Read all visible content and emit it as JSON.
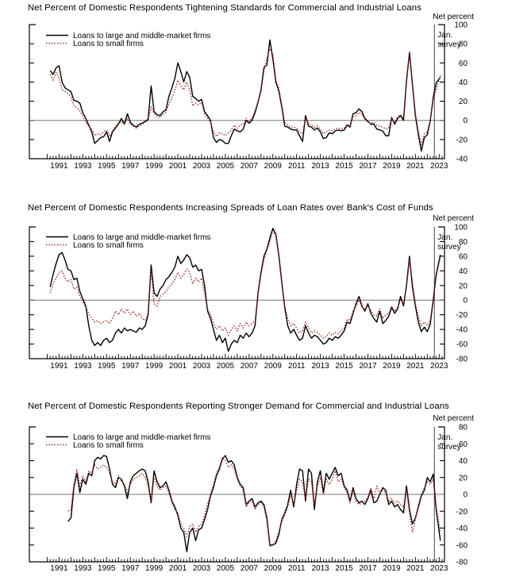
{
  "page": {
    "background": "#ffffff"
  },
  "colors": {
    "large_firms": "#000000",
    "small_firms": "#9e1f1f",
    "zero_line": "#777777",
    "axis": "#000000",
    "survey_line": "#444444"
  },
  "chart_data": [
    {
      "type": "line",
      "title": "Net Percent of Domestic Respondents Tightening Standards for Commercial and Industrial Loans",
      "ylabel_right": "Net percent",
      "annotation_lines": [
        "Jan.",
        "survey"
      ],
      "annotation_x": 2022.6,
      "legend": [
        "Loans to large and middle-market firms",
        "Loans to small firms"
      ],
      "ylim": [
        -40,
        100
      ],
      "ytick_step": 20,
      "grid": "zero-line-only",
      "legend_position": "top-left-inside",
      "x_axis": {
        "start": 1990.25,
        "step": 0.25,
        "end_regular": 2022.75,
        "final_point": 2023.1,
        "domain": [
          1988.5,
          2023.45
        ],
        "year_labels": [
          1991,
          1993,
          1995,
          1997,
          1999,
          2001,
          2003,
          2005,
          2007,
          2009,
          2011,
          2013,
          2015,
          2017,
          2019,
          2021,
          2023
        ]
      },
      "series": [
        {
          "name": "Loans to large and middle-market firms",
          "style": "solid",
          "color": "#000000",
          "values": [
            52,
            48,
            55,
            57,
            40,
            34,
            32,
            30,
            21,
            20,
            18,
            8,
            2,
            -5,
            -12,
            -24,
            -21,
            -18,
            -17,
            -12,
            -22,
            -12,
            -8,
            -4,
            2,
            -4,
            7,
            -2,
            -5,
            -7,
            -4,
            -3,
            -1,
            1,
            36,
            9,
            6,
            5,
            9,
            11,
            25,
            34,
            44,
            60,
            51,
            40,
            51,
            45,
            25,
            23,
            20,
            22,
            9,
            5,
            0,
            -18,
            -23,
            -20,
            -21,
            -24,
            -24,
            -16,
            -9,
            -11,
            -12,
            -9,
            0,
            -3,
            0,
            8,
            19,
            32,
            55,
            58,
            84,
            64,
            40,
            31,
            14,
            -6,
            -7,
            -9,
            -10,
            -10,
            -16,
            -22,
            5,
            -6,
            -7,
            -10,
            -8,
            -12,
            -19,
            -18,
            -13,
            -14,
            -11,
            -10,
            -11,
            -10,
            -5,
            -7,
            7,
            8,
            12,
            9,
            2,
            -1,
            -4,
            -4,
            -9,
            -10,
            -11,
            -16,
            -16,
            3,
            -4,
            2,
            5,
            0,
            41,
            71,
            38,
            5,
            -15,
            -32,
            -18,
            -15,
            -1,
            24,
            39,
            45
          ]
        },
        {
          "name": "Loans to small firms",
          "style": "dotted",
          "color": "#9e1f1f",
          "values": [
            48,
            42,
            50,
            44,
            32,
            30,
            28,
            24,
            15,
            13,
            10,
            4,
            -2,
            -6,
            -9,
            -16,
            -14,
            -15,
            -12,
            -10,
            -17,
            -11,
            -6,
            -3,
            -1,
            -4,
            2,
            -4,
            -6,
            -8,
            -6,
            -4,
            -2,
            0,
            14,
            7,
            4,
            3,
            6,
            9,
            17,
            24,
            31,
            42,
            36,
            32,
            40,
            32,
            15,
            18,
            16,
            19,
            7,
            2,
            -2,
            -12,
            -17,
            -13,
            -14,
            -16,
            -13,
            -10,
            -5,
            -8,
            -5,
            -4,
            2,
            -2,
            3,
            10,
            20,
            30,
            52,
            65,
            75,
            69,
            42,
            34,
            16,
            -2,
            -5,
            -7,
            -7,
            -8,
            -12,
            -14,
            2,
            -3,
            -5,
            -7,
            -6,
            -9,
            -14,
            -12,
            -10,
            -11,
            -9,
            -8,
            -9,
            -8,
            -4,
            -5,
            4,
            5,
            8,
            6,
            1,
            -2,
            -3,
            -2,
            -5,
            -6,
            -7,
            -9,
            -8,
            2,
            -2,
            4,
            6,
            2,
            40,
            70,
            36,
            8,
            -12,
            -25,
            -14,
            -12,
            0,
            22,
            32,
            47
          ]
        }
      ]
    },
    {
      "type": "line",
      "title": "Net Percent of Domestic Respondents Increasing Spreads of Loan Rates over Bank's Cost of Funds",
      "ylabel_right": "Net percent",
      "annotation_lines": [
        "Jan.",
        "survey"
      ],
      "annotation_x": 2022.6,
      "legend": [
        "Loans to large and middle-market firms",
        "Loans to small firms"
      ],
      "ylim": [
        -80,
        100
      ],
      "ytick_step": 20,
      "grid": "zero-line-only",
      "legend_position": "top-left-inside",
      "x_axis": {
        "start": 1990.25,
        "step": 0.25,
        "end_regular": 2022.75,
        "final_point": 2023.1,
        "domain": [
          1988.5,
          2023.45
        ],
        "year_labels": [
          1991,
          1993,
          1995,
          1997,
          1999,
          2001,
          2003,
          2005,
          2007,
          2009,
          2011,
          2013,
          2015,
          2017,
          2019,
          2021,
          2023
        ]
      },
      "series": [
        {
          "name": "Loans to large and middle-market firms",
          "style": "solid",
          "color": "#000000",
          "values": [
            18,
            35,
            50,
            62,
            65,
            55,
            42,
            40,
            28,
            30,
            12,
            2,
            -8,
            -35,
            -55,
            -62,
            -58,
            -62,
            -55,
            -52,
            -58,
            -55,
            -45,
            -40,
            -45,
            -38,
            -42,
            -40,
            -42,
            -44,
            -38,
            -40,
            -35,
            -20,
            48,
            10,
            5,
            15,
            20,
            28,
            32,
            38,
            45,
            60,
            50,
            55,
            62,
            58,
            45,
            48,
            40,
            42,
            20,
            -15,
            -25,
            -40,
            -55,
            -48,
            -58,
            -52,
            -70,
            -60,
            -55,
            -58,
            -48,
            -52,
            -45,
            -50,
            -45,
            -35,
            10,
            38,
            60,
            70,
            85,
            98,
            90,
            62,
            25,
            -10,
            -35,
            -45,
            -40,
            -48,
            -55,
            -52,
            -35,
            -45,
            -52,
            -48,
            -50,
            -55,
            -60,
            -58,
            -52,
            -55,
            -50,
            -52,
            -48,
            -42,
            -30,
            -32,
            -18,
            -5,
            5,
            -8,
            -15,
            -5,
            -18,
            -25,
            -30,
            -15,
            -32,
            -28,
            -22,
            -10,
            -18,
            -12,
            5,
            -8,
            20,
            60,
            18,
            -8,
            -30,
            -43,
            -37,
            -43,
            -33,
            0,
            35,
            62
          ]
        },
        {
          "name": "Loans to small firms",
          "style": "dotted",
          "color": "#9e1f1f",
          "values": [
            10,
            22,
            30,
            38,
            40,
            30,
            25,
            28,
            15,
            18,
            5,
            -2,
            -10,
            -18,
            -25,
            -30,
            -28,
            -32,
            -30,
            -28,
            -32,
            -25,
            -15,
            -20,
            -12,
            -18,
            -12,
            -20,
            -15,
            -22,
            -18,
            -25,
            -28,
            -18,
            40,
            -5,
            -8,
            5,
            8,
            12,
            18,
            22,
            28,
            38,
            30,
            35,
            42,
            38,
            22,
            30,
            25,
            30,
            10,
            -12,
            -20,
            -32,
            -40,
            -35,
            -42,
            -38,
            -48,
            -40,
            -35,
            -42,
            -32,
            -38,
            -30,
            -35,
            -32,
            -28,
            8,
            35,
            55,
            68,
            80,
            95,
            88,
            60,
            22,
            -8,
            -25,
            -35,
            -32,
            -38,
            -45,
            -42,
            -30,
            -38,
            -45,
            -42,
            -44,
            -48,
            -52,
            -50,
            -45,
            -48,
            -44,
            -46,
            -42,
            -38,
            -26,
            -28,
            -15,
            -8,
            0,
            -10,
            -12,
            -8,
            -14,
            -20,
            -22,
            -12,
            -25,
            -20,
            -18,
            -8,
            -15,
            -10,
            0,
            -5,
            18,
            55,
            25,
            -5,
            -22,
            -35,
            -30,
            -35,
            -28,
            2,
            32,
            58
          ]
        }
      ]
    },
    {
      "type": "line",
      "title": "Net Percent of Domestic Respondents Reporting Stronger Demand for Commercial and Industrial Loans",
      "ylabel_right": "Net percent",
      "annotation_lines": [
        "Jan.",
        "survey"
      ],
      "annotation_x": 2022.6,
      "legend": [
        "Loans to large and middle-market firms",
        "Loans to small firms"
      ],
      "ylim": [
        -80,
        80
      ],
      "ytick_step": 20,
      "grid": "zero-line-only",
      "legend_position": "top-left-inside",
      "x_axis": {
        "start": 1991.75,
        "step": 0.25,
        "end_regular": 2022.75,
        "final_point": 2023.1,
        "domain": [
          1988.5,
          2023.45
        ],
        "year_labels": [
          1991,
          1993,
          1995,
          1997,
          1999,
          2001,
          2003,
          2005,
          2007,
          2009,
          2011,
          2013,
          2015,
          2017,
          2019,
          2021,
          2023
        ]
      },
      "series": [
        {
          "name": "Loans to large and middle-market firms",
          "style": "solid",
          "color": "#000000",
          "values": [
            -32,
            -28,
            8,
            25,
            2,
            18,
            12,
            25,
            22,
            40,
            44,
            42,
            46,
            45,
            30,
            12,
            8,
            20,
            18,
            10,
            -5,
            15,
            22,
            25,
            28,
            30,
            28,
            15,
            -10,
            28,
            15,
            8,
            10,
            15,
            5,
            -8,
            -15,
            -25,
            -40,
            -45,
            -68,
            -45,
            -40,
            -55,
            -42,
            -40,
            -30,
            -18,
            -2,
            8,
            22,
            30,
            42,
            46,
            38,
            40,
            35,
            20,
            12,
            8,
            -12,
            -8,
            -5,
            -15,
            -10,
            -8,
            -12,
            -28,
            -60,
            -60,
            -58,
            -48,
            -30,
            -22,
            -12,
            5,
            -15,
            12,
            30,
            28,
            -8,
            30,
            25,
            -18,
            15,
            28,
            2,
            25,
            18,
            25,
            32,
            22,
            25,
            10,
            5,
            -8,
            8,
            -5,
            -10,
            -8,
            -12,
            -5,
            5,
            -10,
            -8,
            0,
            8,
            5,
            -12,
            -8,
            -15,
            -12,
            -18,
            -22,
            10,
            -18,
            -35,
            -28,
            -15,
            -2,
            5,
            20,
            15,
            24,
            -18,
            -55
          ]
        },
        {
          "name": "Loans to small firms",
          "style": "dotted",
          "color": "#9e1f1f",
          "values": [
            -20,
            -18,
            12,
            30,
            10,
            22,
            15,
            28,
            25,
            35,
            30,
            32,
            35,
            32,
            25,
            15,
            12,
            22,
            15,
            12,
            2,
            12,
            18,
            20,
            22,
            25,
            20,
            10,
            -8,
            20,
            10,
            5,
            8,
            10,
            2,
            -10,
            -18,
            -22,
            -35,
            -40,
            -50,
            -38,
            -35,
            -45,
            -38,
            -35,
            -25,
            -12,
            0,
            12,
            25,
            32,
            44,
            40,
            32,
            35,
            30,
            18,
            10,
            5,
            -15,
            -10,
            -8,
            -18,
            -12,
            -10,
            -15,
            -32,
            -62,
            -60,
            -55,
            -45,
            -32,
            -25,
            -15,
            0,
            -12,
            5,
            18,
            15,
            -5,
            18,
            15,
            -12,
            10,
            20,
            0,
            18,
            12,
            18,
            28,
            15,
            18,
            8,
            2,
            -10,
            5,
            -8,
            -12,
            -10,
            -8,
            -3,
            8,
            -5,
            10,
            2,
            5,
            2,
            -8,
            -5,
            -10,
            -8,
            -12,
            -15,
            5,
            -22,
            -45,
            -30,
            -12,
            0,
            8,
            15,
            12,
            18,
            -15,
            -45
          ]
        }
      ]
    }
  ]
}
